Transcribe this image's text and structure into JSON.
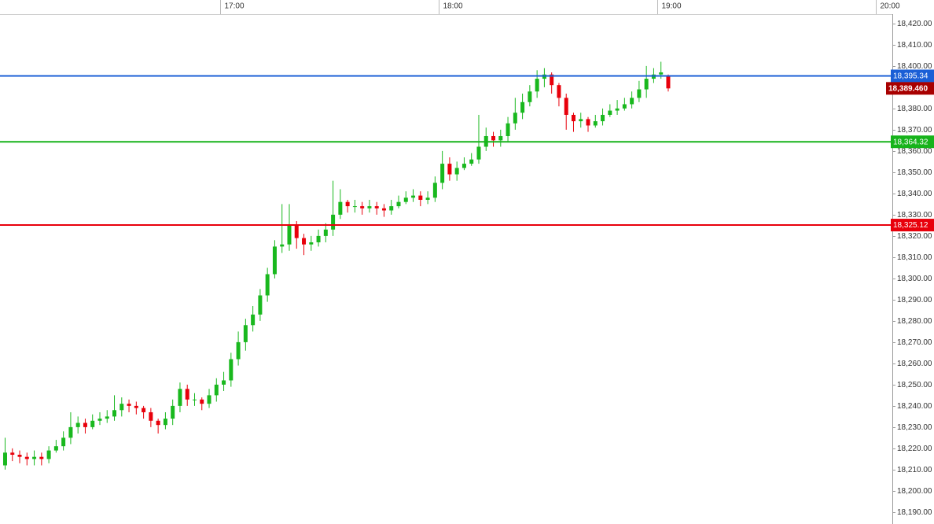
{
  "chart_data": {
    "type": "candlestick",
    "x": [
      961,
      963,
      965,
      967,
      969,
      971,
      973,
      975,
      977,
      979,
      981,
      983,
      985,
      987,
      989,
      991,
      993,
      995,
      997,
      999,
      1001,
      1003,
      1005,
      1007,
      1009,
      1011,
      1013,
      1015,
      1017,
      1019,
      1021,
      1023,
      1025,
      1027,
      1029,
      1031,
      1033,
      1035,
      1037,
      1039,
      1041,
      1043,
      1045,
      1047,
      1049,
      1051,
      1053,
      1055,
      1057,
      1059,
      1061,
      1063,
      1065,
      1067,
      1069,
      1071,
      1073,
      1075,
      1077,
      1079,
      1081,
      1083,
      1085,
      1087,
      1089,
      1091,
      1093,
      1095,
      1097,
      1099,
      1101,
      1103,
      1105,
      1107,
      1109,
      1111,
      1113,
      1115,
      1117,
      1119,
      1121,
      1123,
      1125,
      1127,
      1129,
      1131,
      1133,
      1135,
      1137,
      1139,
      1141,
      1143
    ],
    "open": [
      18212,
      18218,
      18217,
      18216,
      18215,
      18216,
      18215,
      18219,
      18221,
      18225,
      18230,
      18232,
      18230,
      18233,
      18234,
      18235,
      18238,
      18241,
      18240,
      18239,
      18237,
      18233,
      18231,
      18234,
      18240,
      18248,
      18243,
      18243,
      18241,
      18245,
      18250,
      18252,
      18262,
      18270,
      18278,
      18283,
      18292,
      18302,
      18315,
      18316,
      18325,
      18319,
      18316,
      18317,
      18320,
      18323,
      18330,
      18336,
      18334,
      18334,
      18333,
      18334,
      18333,
      18332,
      18334,
      18336,
      18338,
      18339,
      18337,
      18338,
      18345,
      18354,
      18349,
      18352,
      18354,
      18356,
      18362,
      18367,
      18365,
      18367,
      18373,
      18378,
      18383,
      18388,
      18394,
      18396,
      18391,
      18385,
      18377,
      18374,
      18375,
      18372,
      18374,
      18377,
      18379,
      18380,
      18382,
      18385,
      18389,
      18394,
      18396,
      18395
    ],
    "high": [
      18225,
      18220,
      18219,
      18218,
      18219,
      18218,
      18221,
      18224,
      18228,
      18237,
      18235,
      18234,
      18236,
      18237,
      18238,
      18245,
      18244,
      18243,
      18242,
      18240,
      18239,
      18234,
      18237,
      18243,
      18251,
      18250,
      18246,
      18244,
      18248,
      18253,
      18256,
      18265,
      18275,
      18281,
      18287,
      18295,
      18305,
      18318,
      18335,
      18335,
      18327,
      18321,
      18320,
      18323,
      18326,
      18346,
      18342,
      18337,
      18337,
      18336,
      18337,
      18336,
      18335,
      18337,
      18339,
      18341,
      18342,
      18341,
      18341,
      18348,
      18360,
      18357,
      18355,
      18357,
      18359,
      18377,
      18371,
      18369,
      18370,
      18376,
      18385,
      18387,
      18391,
      18398,
      18399,
      18397,
      18392,
      18387,
      18378,
      18378,
      18376,
      18377,
      18380,
      18382,
      18384,
      18385,
      18388,
      18393,
      18400,
      18399,
      18402,
      18396
    ],
    "low": [
      18210,
      18214,
      18213,
      18212,
      18212,
      18212,
      18213,
      18218,
      18219,
      18222,
      18227,
      18227,
      18229,
      18231,
      18232,
      18233,
      18235,
      18237,
      18236,
      18234,
      18230,
      18227,
      18229,
      18231,
      18237,
      18240,
      18240,
      18238,
      18239,
      18242,
      18247,
      18249,
      18259,
      18266,
      18275,
      18280,
      18289,
      18300,
      18312,
      18313,
      18314,
      18311,
      18313,
      18315,
      18317,
      18320,
      18328,
      18331,
      18331,
      18330,
      18331,
      18330,
      18329,
      18330,
      18333,
      18335,
      18336,
      18334,
      18335,
      18336,
      18342,
      18346,
      18346,
      18351,
      18353,
      18354,
      18360,
      18362,
      18362,
      18364,
      18370,
      18375,
      18381,
      18385,
      18390,
      18387,
      18381,
      18370,
      18369,
      18371,
      18369,
      18371,
      18372,
      18376,
      18377,
      18379,
      18380,
      18383,
      18385,
      18392,
      18394,
      18388
    ],
    "close": [
      18218,
      18217,
      18216,
      18215,
      18216,
      18215,
      18219,
      18221,
      18225,
      18230,
      18232,
      18230,
      18233,
      18234,
      18235,
      18238,
      18241,
      18240,
      18239,
      18237,
      18233,
      18231,
      18234,
      18240,
      18248,
      18243,
      18243,
      18241,
      18245,
      18250,
      18252,
      18262,
      18270,
      18278,
      18283,
      18292,
      18302,
      18315,
      18316,
      18325,
      18319,
      18316,
      18317,
      18320,
      18323,
      18330,
      18336,
      18334,
      18334,
      18333,
      18334,
      18333,
      18332,
      18334,
      18336,
      18338,
      18339,
      18337,
      18338,
      18345,
      18354,
      18349,
      18352,
      18354,
      18356,
      18362,
      18367,
      18365,
      18367,
      18373,
      18378,
      18383,
      18388,
      18394,
      18396,
      18391,
      18385,
      18377,
      18374,
      18375,
      18372,
      18374,
      18377,
      18379,
      18380,
      18382,
      18385,
      18389,
      18394,
      18396,
      18397,
      18389.46
    ],
    "up_color": "#19b81e",
    "down_color": "#e8000b",
    "xlim": [
      959.6,
      1204.5
    ],
    "xticks": [
      {
        "value": 1020,
        "label": "17:00"
      },
      {
        "value": 1080,
        "label": "18:00"
      },
      {
        "value": 1140,
        "label": "19:00"
      },
      {
        "value": 1200,
        "label": "20:00"
      }
    ],
    "ylim": [
      18184.4,
      18424.4
    ],
    "yticks": [
      {
        "value": 18190,
        "label": "18,190.00"
      },
      {
        "value": 18200,
        "label": "18,200.00"
      },
      {
        "value": 18210,
        "label": "18,210.00"
      },
      {
        "value": 18220,
        "label": "18,220.00"
      },
      {
        "value": 18230,
        "label": "18,230.00"
      },
      {
        "value": 18240,
        "label": "18,240.00"
      },
      {
        "value": 18250,
        "label": "18,250.00"
      },
      {
        "value": 18260,
        "label": "18,260.00"
      },
      {
        "value": 18270,
        "label": "18,270.00"
      },
      {
        "value": 18280,
        "label": "18,280.00"
      },
      {
        "value": 18290,
        "label": "18,290.00"
      },
      {
        "value": 18300,
        "label": "18,300.00"
      },
      {
        "value": 18310,
        "label": "18,310.00"
      },
      {
        "value": 18320,
        "label": "18,320.00"
      },
      {
        "value": 18330,
        "label": "18,330.00"
      },
      {
        "value": 18340,
        "label": "18,340.00"
      },
      {
        "value": 18350,
        "label": "18,350.00"
      },
      {
        "value": 18360,
        "label": "18,360.00"
      },
      {
        "value": 18370,
        "label": "18,370.00"
      },
      {
        "value": 18380,
        "label": "18,380.00"
      },
      {
        "value": 18390,
        "label": "18,390.00"
      },
      {
        "value": 18400,
        "label": "18,400.00"
      },
      {
        "value": 18410,
        "label": "18,410.00"
      },
      {
        "value": 18420,
        "label": "18,420.00"
      }
    ],
    "levels": [
      {
        "value": 18395.34,
        "label": "18,395.34",
        "color": "#1a5fd6"
      },
      {
        "value": 18364.32,
        "label": "18,364.32",
        "color": "#17b31b"
      },
      {
        "value": 18325.12,
        "label": "18,325.12",
        "color": "#e8000b"
      }
    ],
    "last_price": {
      "value": 18389.46,
      "label": "18,389.460",
      "color": "#a80000"
    }
  }
}
